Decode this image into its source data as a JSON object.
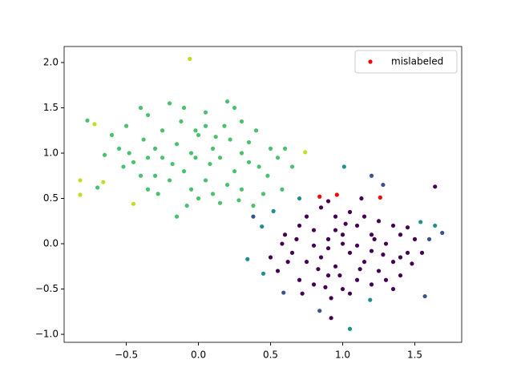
{
  "chart_data": {
    "type": "scatter",
    "xlim": [
      -0.931,
      1.825
    ],
    "ylim": [
      -1.088,
      2.177
    ],
    "xticks": [
      {
        "value": -0.5,
        "label": "−0.5"
      },
      {
        "value": 0,
        "label": "0.0"
      },
      {
        "value": 0.5,
        "label": "0.5"
      },
      {
        "value": 1,
        "label": "1.0"
      },
      {
        "value": 1.5,
        "label": "1.5"
      }
    ],
    "yticks": [
      {
        "value": -1,
        "label": "−1.0"
      },
      {
        "value": -0.5,
        "label": "−0.5"
      },
      {
        "value": 0,
        "label": "0.0"
      },
      {
        "value": 0.5,
        "label": "0.5"
      },
      {
        "value": 1,
        "label": "1.0"
      },
      {
        "value": 1.5,
        "label": "1.5"
      },
      {
        "value": 2,
        "label": "2.0"
      }
    ],
    "legend": "upper right",
    "series": [
      {
        "color": "#4ac16d",
        "x": [
          -0.4,
          -0.35,
          -0.2,
          -0.1,
          0.05,
          0.2,
          0.25,
          0.3,
          -0.5,
          -0.6,
          -0.55,
          -0.65,
          -0.52,
          -0.45,
          -0.38,
          -0.3,
          -0.25,
          -0.15,
          -0.05,
          0.0,
          0.1,
          0.15,
          0.22,
          0.3,
          0.35,
          0.42,
          0.5,
          0.55,
          0.6,
          0.4,
          -0.1,
          -0.2,
          -0.3,
          0.05,
          0.1,
          0.2,
          0.25,
          0.3,
          -0.05,
          -0.08,
          0.0,
          0.15,
          0.28,
          0.45,
          -0.15,
          -0.4,
          -0.48,
          -0.35,
          0.35,
          0.18,
          0.05,
          -0.25,
          -0.12,
          -0.02,
          0.08,
          -0.18,
          0.38,
          -0.7,
          -0.77,
          0.58,
          0.65,
          -0.28,
          0.12,
          -0.35,
          0.48,
          -0.02
        ],
        "values": [
          1.5,
          1.42,
          1.55,
          1.5,
          1.45,
          1.57,
          1.5,
          1.35,
          1.3,
          1.2,
          1.05,
          0.98,
          0.85,
          0.9,
          1.15,
          1.05,
          0.95,
          1.1,
          1.0,
          1.2,
          1.05,
          0.95,
          1.15,
          1.0,
          0.9,
          0.85,
          1.05,
          0.95,
          1.05,
          1.25,
          0.8,
          0.7,
          0.75,
          0.7,
          0.55,
          0.65,
          0.8,
          0.6,
          0.6,
          0.42,
          0.5,
          0.45,
          0.48,
          0.55,
          0.3,
          0.75,
          1.0,
          0.6,
          1.12,
          1.3,
          1.3,
          1.25,
          1.35,
          1.25,
          0.88,
          0.88,
          0.42,
          0.62,
          1.36,
          0.6,
          0.85,
          0.55,
          1.18,
          0.95,
          0.75,
          0.95
        ]
      },
      {
        "color": "#440154",
        "x": [
          0.6,
          0.7,
          0.8,
          0.9,
          1.0,
          1.1,
          1.2,
          1.3,
          1.4,
          1.5,
          0.65,
          0.75,
          0.85,
          0.95,
          1.05,
          1.15,
          1.25,
          1.35,
          1.45,
          0.55,
          0.7,
          0.8,
          0.9,
          1.0,
          1.1,
          1.2,
          1.3,
          1.4,
          0.85,
          0.95,
          1.05,
          1.15,
          1.25,
          1.35,
          0.75,
          0.62,
          0.58,
          1.0,
          1.1,
          0.9,
          0.8,
          1.2,
          1.35,
          1.05,
          0.92,
          0.88,
          0.95,
          1.45,
          1.4,
          0.68,
          0.72,
          1.13,
          0.9,
          1.02,
          1.22,
          1.28,
          1.48,
          0.98,
          1.12,
          0.83,
          0.92,
          1.64,
          1.55,
          0.5
        ],
        "values": [
          0.1,
          0.2,
          0.15,
          0.05,
          0.1,
          0.2,
          0.1,
          0.0,
          0.1,
          0.05,
          -0.1,
          -0.2,
          -0.15,
          -0.25,
          -0.1,
          -0.2,
          -0.3,
          -0.2,
          -0.1,
          -0.3,
          -0.4,
          -0.45,
          -0.35,
          -0.5,
          -0.4,
          -0.45,
          -0.4,
          -0.35,
          0.4,
          0.3,
          0.35,
          0.3,
          0.25,
          0.2,
          0.3,
          -0.2,
          0.0,
          0.0,
          -0.02,
          -0.05,
          -0.02,
          -0.08,
          -0.5,
          -0.55,
          -0.6,
          -0.48,
          0.15,
          0.18,
          -0.15,
          0.05,
          -0.55,
          0.5,
          0.47,
          0.22,
          0.05,
          -0.12,
          -0.22,
          -0.35,
          -0.28,
          -0.28,
          -0.82,
          0.63,
          -0.1,
          -0.15
        ]
      },
      {
        "color": "#3b528b",
        "x": [
          1.2,
          1.28,
          0.38,
          0.59,
          0.84,
          1.57,
          1.6,
          1.69
        ],
        "values": [
          0.75,
          0.65,
          0.3,
          -0.54,
          -0.74,
          -0.58,
          0.05,
          0.12
        ]
      },
      {
        "color": "#21908d",
        "x": [
          1.01,
          0.52,
          0.44,
          0.7,
          1.19,
          1.05,
          1.54,
          1.64,
          0.45,
          0.34
        ],
        "values": [
          0.85,
          0.36,
          0.19,
          0.5,
          -0.62,
          -0.94,
          0.24,
          0.2,
          -0.33,
          -0.17
        ]
      },
      {
        "color": "#bddf26",
        "x": [
          -0.06,
          -0.82,
          -0.82,
          -0.72,
          -0.66,
          -0.45,
          0.74
        ],
        "values": [
          2.04,
          0.7,
          0.54,
          1.32,
          0.68,
          0.44,
          1.01
        ]
      },
      {
        "name": "mislabeled",
        "color": "#ff0000",
        "x": [
          0.84,
          0.96,
          1.26
        ],
        "values": [
          0.52,
          0.54,
          0.51
        ]
      }
    ]
  }
}
